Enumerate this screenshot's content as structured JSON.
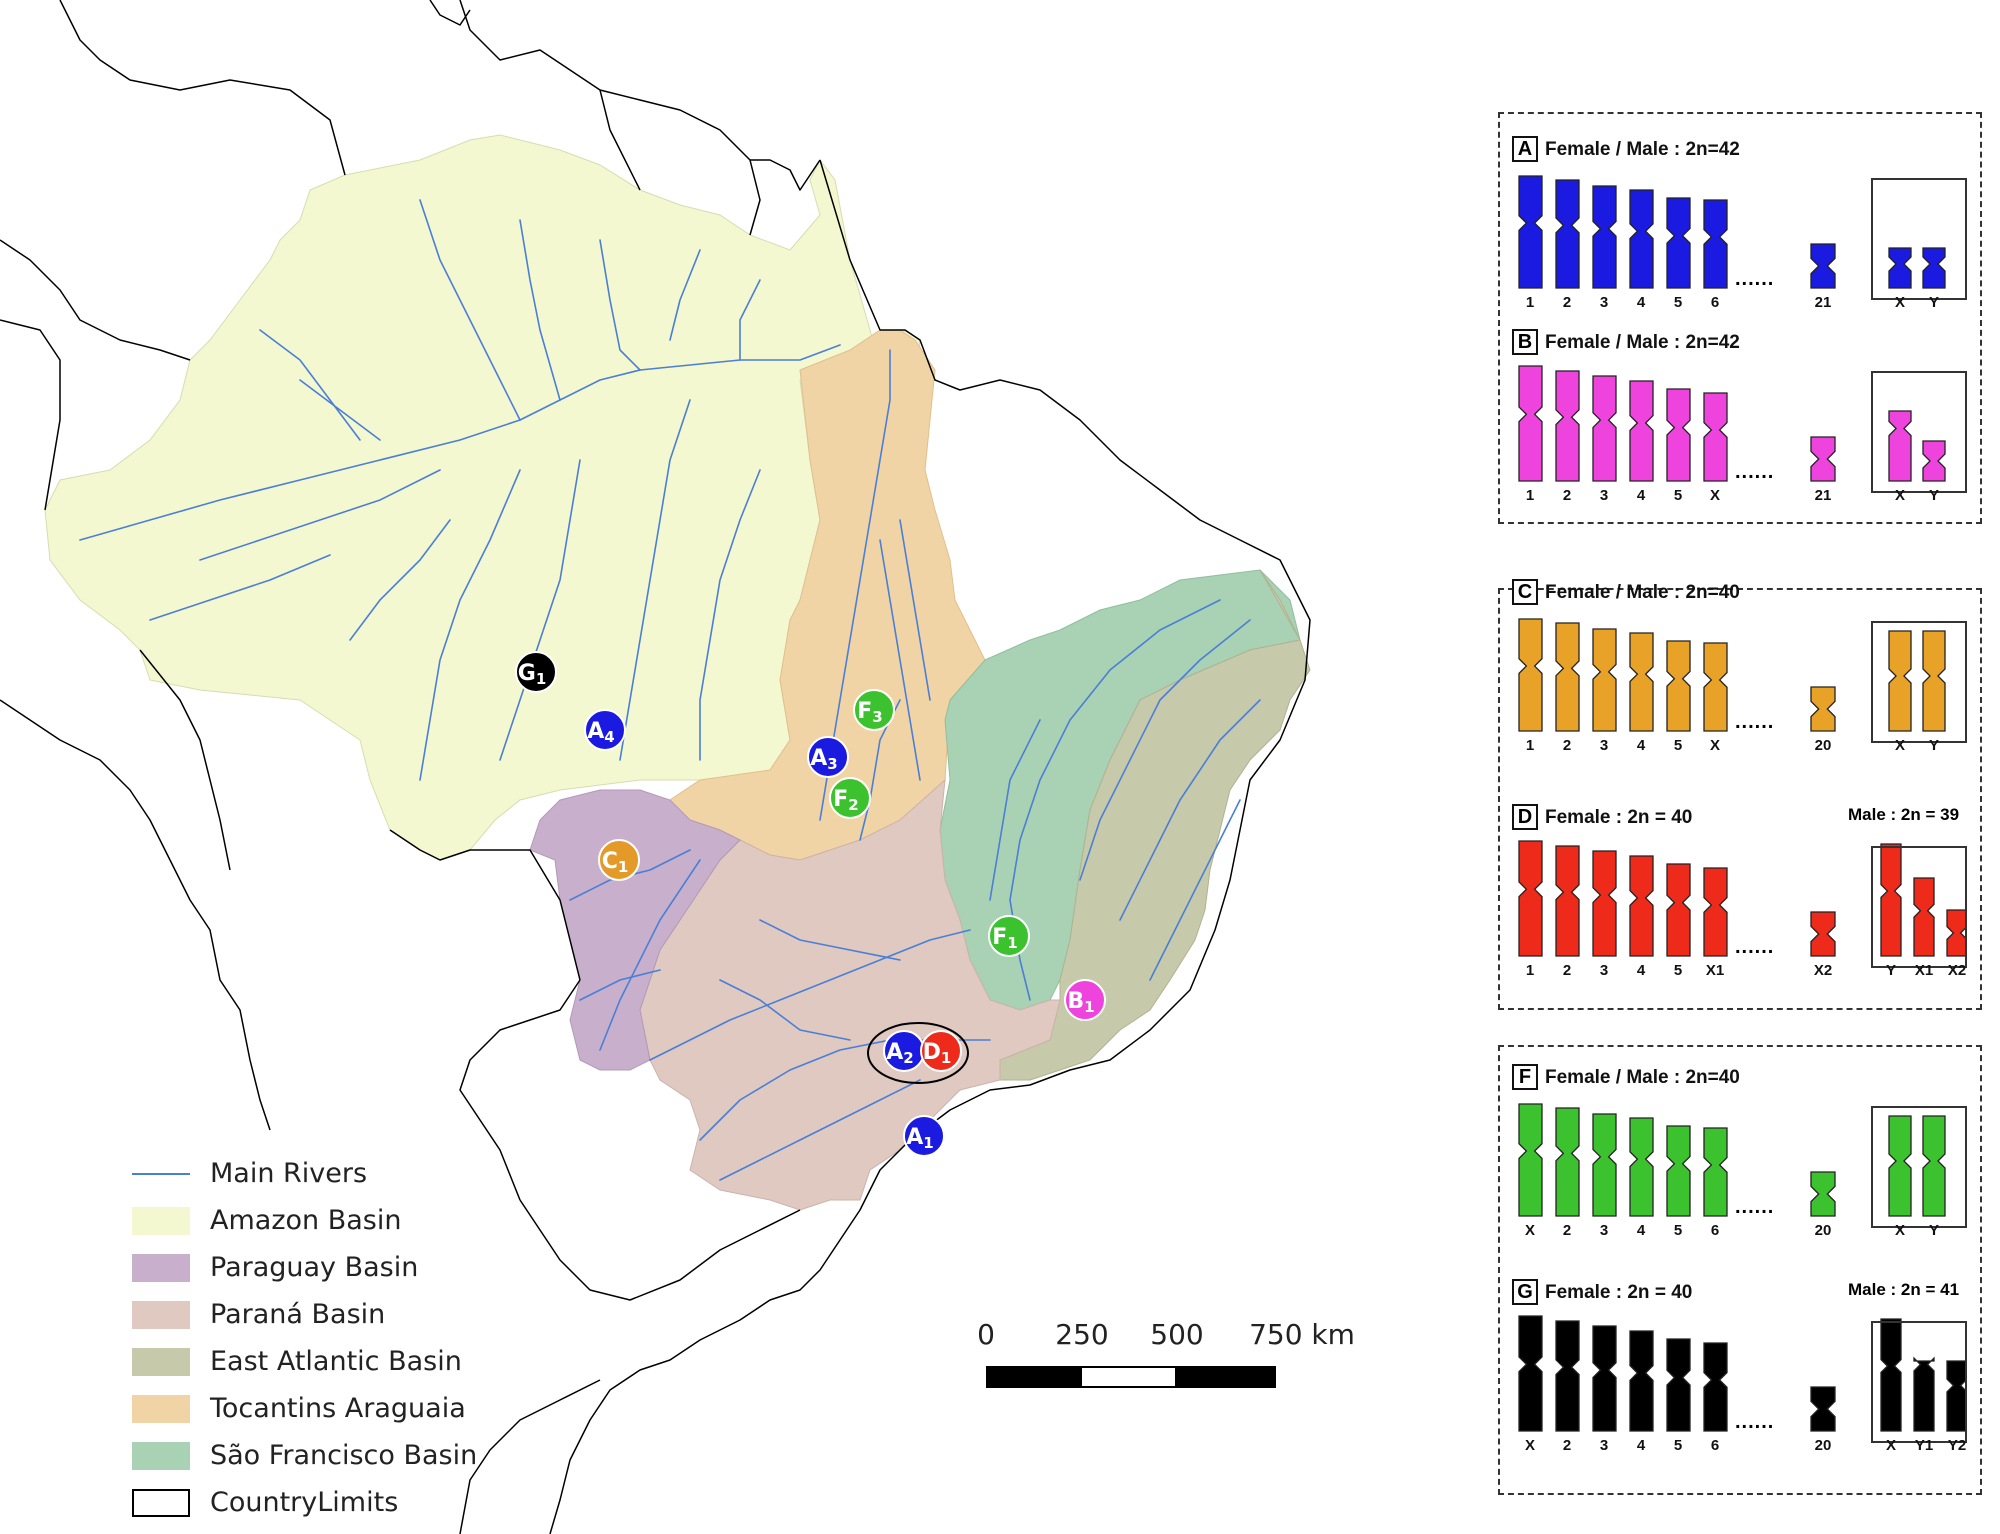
{
  "legend": {
    "items": [
      {
        "label": "Main Rivers",
        "kind": "line",
        "color": "#4a7fd6"
      },
      {
        "label": "Amazon Basin",
        "kind": "fill",
        "color": "#f4f8d0"
      },
      {
        "label": "Paraguay Basin",
        "kind": "fill",
        "color": "#c8b0cc"
      },
      {
        "label": "Paraná Basin",
        "kind": "fill",
        "color": "#dfc9c1"
      },
      {
        "label": "East Atlantic Basin",
        "kind": "fill",
        "color": "#c7c9ab"
      },
      {
        "label": "Tocantins Araguaia",
        "kind": "fill",
        "color": "#f1d4a5"
      },
      {
        "label": "São Francisco Basin",
        "kind": "fill",
        "color": "#a9d1b4"
      },
      {
        "label": "CountryLimits",
        "kind": "outline",
        "color": "#000000"
      }
    ]
  },
  "scale_bar": {
    "labels": [
      "0",
      "250",
      "500",
      "750 km"
    ]
  },
  "sites": [
    {
      "letter": "G",
      "sub": "1",
      "color": "#000000"
    },
    {
      "letter": "A",
      "sub": "4",
      "color": "#1a1ae0"
    },
    {
      "letter": "F",
      "sub": "3",
      "color": "#3cc22e"
    },
    {
      "letter": "A",
      "sub": "3",
      "color": "#1a1ae0"
    },
    {
      "letter": "F",
      "sub": "2",
      "color": "#3cc22e"
    },
    {
      "letter": "C",
      "sub": "1",
      "color": "#e39a28"
    },
    {
      "letter": "F",
      "sub": "1",
      "color": "#3cc22e"
    },
    {
      "letter": "B",
      "sub": "1",
      "color": "#ee44dd"
    },
    {
      "letter": "A",
      "sub": "2",
      "color": "#1a1ae0"
    },
    {
      "letter": "D",
      "sub": "1",
      "color": "#ee2a1a"
    },
    {
      "letter": "A",
      "sub": "1",
      "color": "#1a1ae0"
    }
  ],
  "karyotypes": [
    {
      "letter": "A",
      "title": "Female / Male : 2n=42",
      "color": "#1a1ae0",
      "autosomes": [
        "1",
        "2",
        "3",
        "4",
        "5",
        "6"
      ],
      "last": "21",
      "sex": [
        "X",
        "Y"
      ],
      "male_title": ""
    },
    {
      "letter": "B",
      "title": "Female / Male : 2n=42",
      "color": "#ee44dd",
      "autosomes": [
        "1",
        "2",
        "3",
        "4",
        "5",
        "X"
      ],
      "last": "21",
      "sex": [
        "X",
        "Y"
      ],
      "male_title": ""
    },
    {
      "letter": "C",
      "title": "Female / Male : 2n=40",
      "color": "#e8a227",
      "autosomes": [
        "1",
        "2",
        "3",
        "4",
        "5",
        "X"
      ],
      "last": "20",
      "sex": [
        "X",
        "Y"
      ],
      "male_title": ""
    },
    {
      "letter": "D",
      "title": "Female : 2n = 40",
      "color": "#ee2a1a",
      "autosomes": [
        "1",
        "2",
        "3",
        "4",
        "5",
        "X1"
      ],
      "last": "X2",
      "sex": [
        "Y",
        "X1",
        "X2"
      ],
      "male_title": "Male : 2n = 39"
    },
    {
      "letter": "F",
      "title": "Female / Male : 2n=40",
      "color": "#3cc22e",
      "autosomes": [
        "X",
        "2",
        "3",
        "4",
        "5",
        "6"
      ],
      "last": "20",
      "sex": [
        "X",
        "Y"
      ],
      "male_title": ""
    },
    {
      "letter": "G",
      "title": "Female : 2n = 40",
      "color": "#000000",
      "autosomes": [
        "X",
        "2",
        "3",
        "4",
        "5",
        "6"
      ],
      "last": "20",
      "sex": [
        "X",
        "Y1",
        "Y2"
      ],
      "male_title": "Male : 2n = 41"
    }
  ]
}
